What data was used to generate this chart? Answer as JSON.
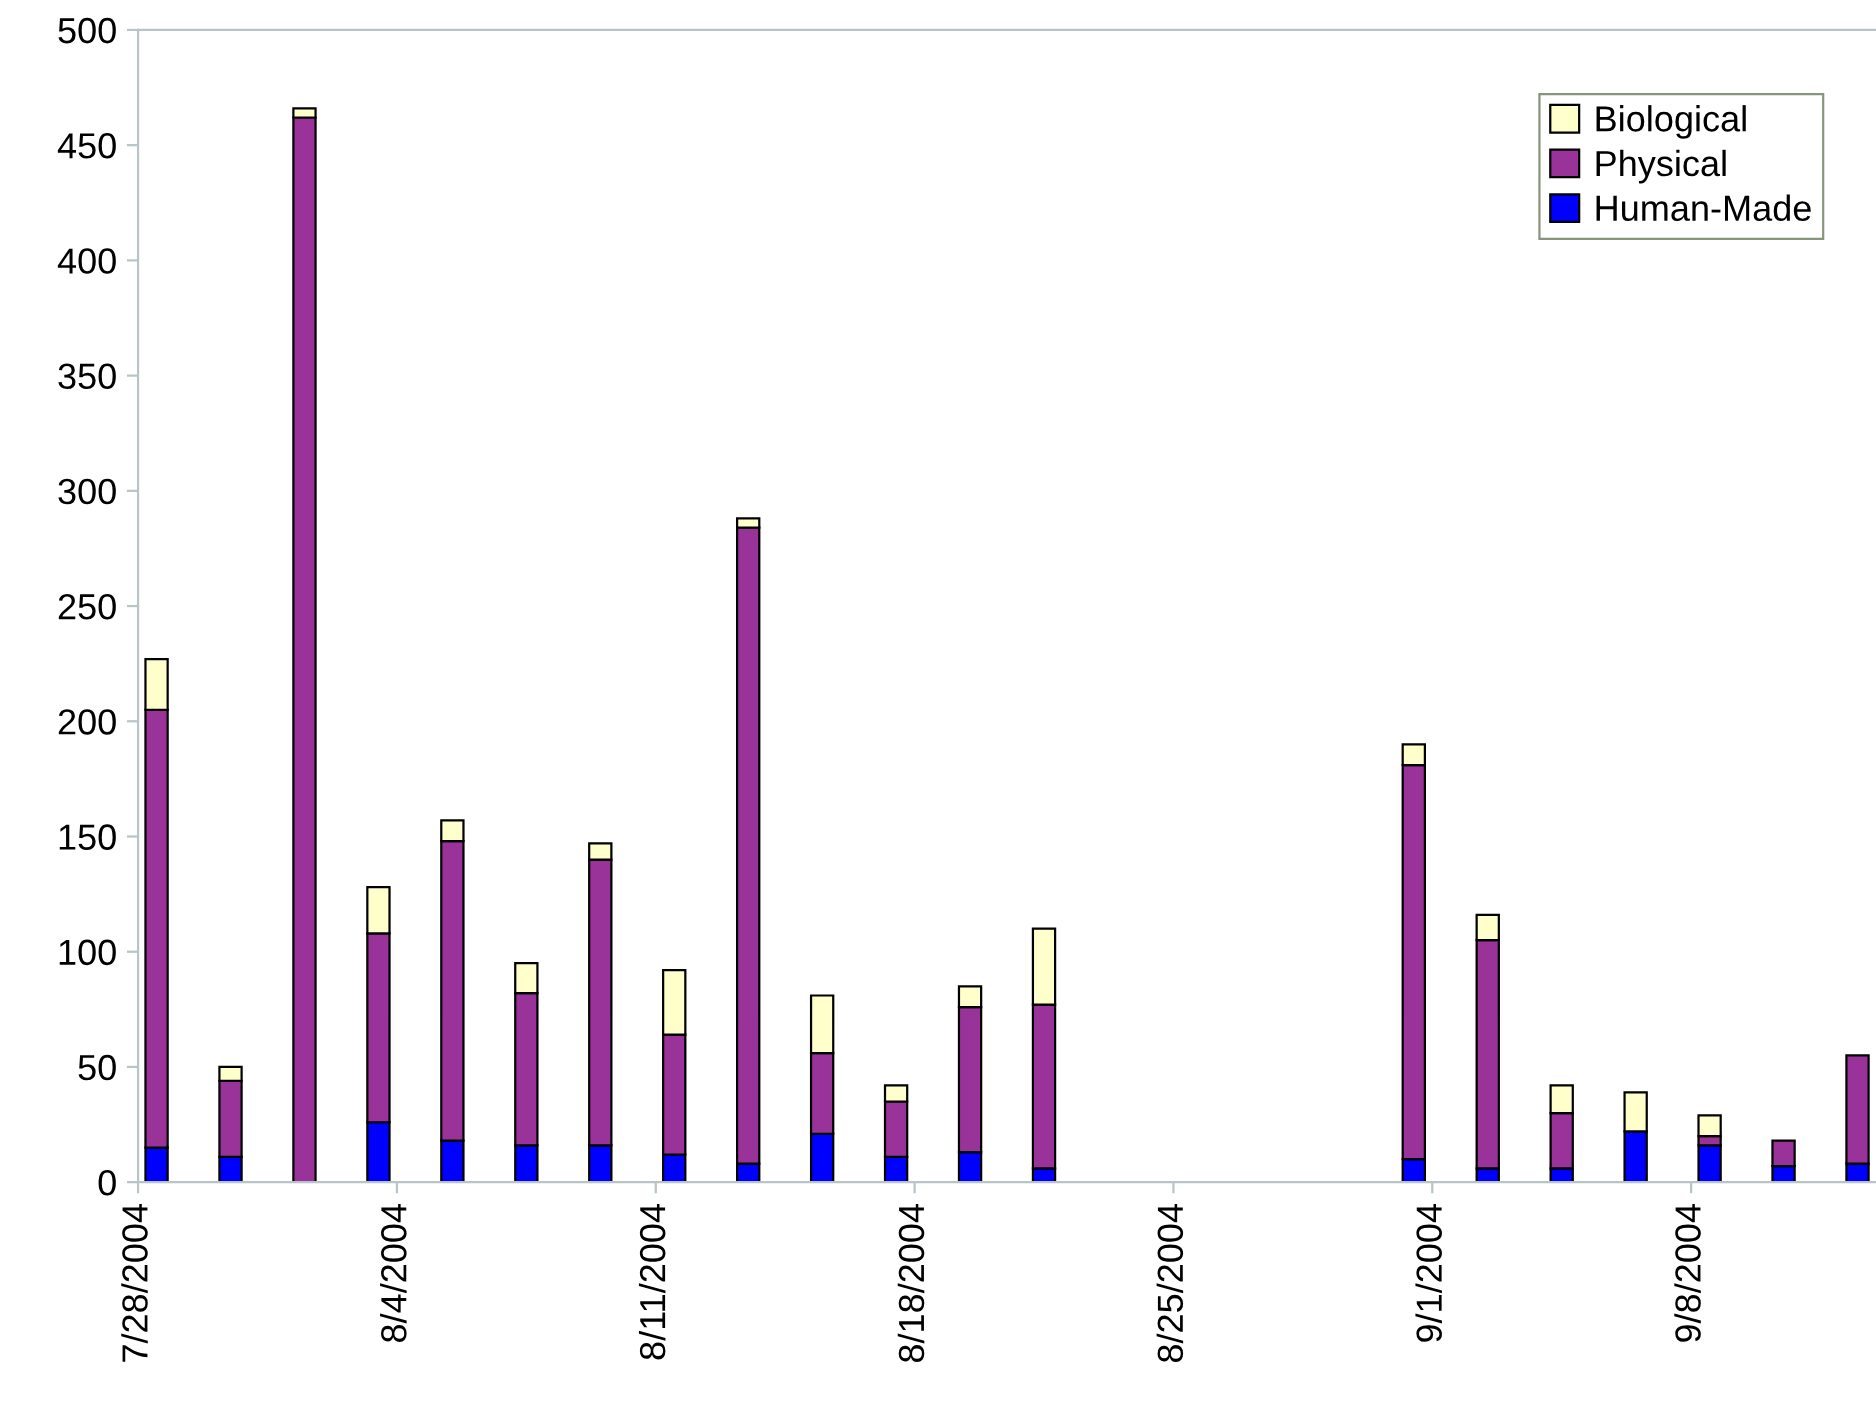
{
  "chart_data": {
    "type": "bar",
    "stacked": true,
    "x": [
      "2004-07-28T12:00",
      "2004-07-30T12:00",
      "2004-08-01T12:00",
      "2004-08-03T12:00",
      "2004-08-05T12:00",
      "2004-08-07T12:00",
      "2004-08-09T12:00",
      "2004-08-11T12:00",
      "2004-08-13T12:00",
      "2004-08-15T12:00",
      "2004-08-17T12:00",
      "2004-08-19T12:00",
      "2004-08-21T12:00",
      "2004-08-31T12:00",
      "2004-09-02T12:00",
      "2004-09-04T12:00",
      "2004-09-06T12:00",
      "2004-09-08T12:00",
      "2004-09-10T12:00",
      "2004-09-12T12:00"
    ],
    "series": [
      {
        "name": "Human-Made",
        "color": "#0000ff",
        "values": [
          15,
          11,
          0,
          26,
          18,
          16,
          16,
          12,
          8,
          21,
          11,
          13,
          6,
          10,
          6,
          6,
          22,
          16,
          7,
          8
        ]
      },
      {
        "name": "Physical",
        "color": "#993399",
        "values": [
          190,
          33,
          462,
          82,
          130,
          66,
          124,
          52,
          276,
          35,
          24,
          63,
          71,
          171,
          99,
          24,
          0,
          4,
          11,
          47
        ]
      },
      {
        "name": "Biological",
        "color": "#ffffcc",
        "values": [
          22,
          6,
          4,
          20,
          9,
          13,
          7,
          28,
          4,
          25,
          7,
          9,
          33,
          9,
          11,
          12,
          17,
          9,
          0,
          0
        ]
      }
    ],
    "xlim": [
      "2004-07-28",
      "2004-09-13"
    ],
    "xticks": [
      {
        "value": "2004-07-28",
        "label": "7/28/2004"
      },
      {
        "value": "2004-08-04",
        "label": "8/4/2004"
      },
      {
        "value": "2004-08-11",
        "label": "8/11/2004"
      },
      {
        "value": "2004-08-18",
        "label": "8/18/2004"
      },
      {
        "value": "2004-08-25",
        "label": "8/25/2004"
      },
      {
        "value": "2004-09-01",
        "label": "9/1/2004"
      },
      {
        "value": "2004-09-08",
        "label": "9/8/2004"
      }
    ],
    "ylim": [
      0,
      500
    ],
    "yticks": [
      0,
      50,
      100,
      150,
      200,
      250,
      300,
      350,
      400,
      450,
      500
    ],
    "grid": false,
    "legend": "top right"
  }
}
